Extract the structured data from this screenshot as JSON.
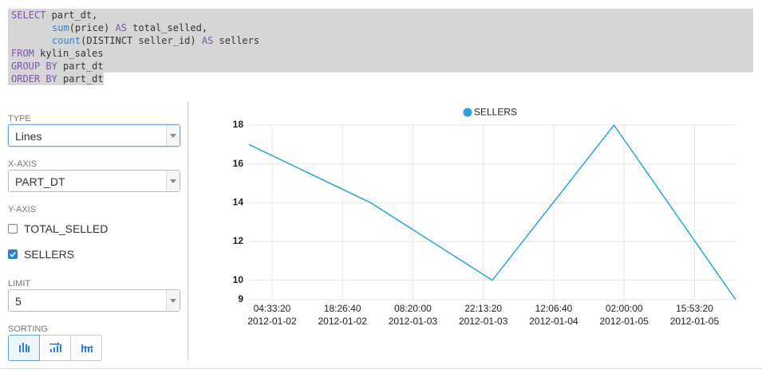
{
  "sql": {
    "lines": [
      [
        {
          "text": "SELECT",
          "style": "keyword"
        },
        {
          "text": " part_dt,",
          "style": "plain"
        }
      ],
      [
        {
          "text": "sum",
          "style": "function"
        },
        {
          "text": "(price) ",
          "style": "plain"
        },
        {
          "text": "AS",
          "style": "keyword"
        },
        {
          "text": " total_selled,",
          "style": "plain"
        }
      ],
      [
        {
          "text": "count",
          "style": "function"
        },
        {
          "text": "(DISTINCT seller_id) ",
          "style": "plain"
        },
        {
          "text": "AS",
          "style": "keyword"
        },
        {
          "text": " sellers",
          "style": "plain"
        }
      ],
      [
        {
          "text": "FROM",
          "style": "keyword"
        },
        {
          "text": " kylin_sales",
          "style": "plain"
        }
      ],
      [
        {
          "text": "GROUP BY",
          "style": "keyword"
        },
        {
          "text": " part_dt",
          "style": "plain"
        }
      ],
      [
        {
          "text": "ORDER BY",
          "style": "keyword"
        },
        {
          "text": " part_dt",
          "style": "plain"
        }
      ]
    ]
  },
  "panel": {
    "type": {
      "label": "TYPE",
      "value": "Lines"
    },
    "x_axis": {
      "label": "X-AXIS",
      "value": "PART_DT"
    },
    "y_axis": {
      "label": "Y-AXIS",
      "options": [
        {
          "name": "TOTAL_SELLED",
          "checked": false
        },
        {
          "name": "SELLERS",
          "checked": true
        }
      ]
    },
    "limit": {
      "label": "LIMIT",
      "value": 5
    },
    "sorting": {
      "label": "SORTING"
    }
  },
  "chart_data": {
    "type": "line",
    "x": [
      "2012-01-02 00:00:00",
      "2012-01-03 00:00:00",
      "2012-01-04 00:00:00",
      "2012-01-05 00:00:00",
      "2012-01-06 00:00:00"
    ],
    "series": [
      {
        "name": "SELLERS",
        "color": "#29a3dc",
        "values": [
          17,
          14,
          10,
          18,
          9
        ]
      }
    ],
    "xlim": [
      "2012-01-02 00:00:00",
      "2012-01-06 00:00:00"
    ],
    "xticks": [
      {
        "value": "2012-01-02 04:33:20",
        "label": [
          "04:33:20",
          "2012-01-02"
        ]
      },
      {
        "value": "2012-01-02 18:26:40",
        "label": [
          "18:26:40",
          "2012-01-02"
        ]
      },
      {
        "value": "2012-01-03 08:20:00",
        "label": [
          "08:20:00",
          "2012-01-03"
        ]
      },
      {
        "value": "2012-01-03 22:13:20",
        "label": [
          "22:13:20",
          "2012-01-03"
        ]
      },
      {
        "value": "2012-01-04 12:06:40",
        "label": [
          "12:06:40",
          "2012-01-04"
        ]
      },
      {
        "value": "2012-01-05 02:00:00",
        "label": [
          "02:00:00",
          "2012-01-05"
        ]
      },
      {
        "value": "2012-01-05 15:53:20",
        "label": [
          "15:53:20",
          "2012-01-05"
        ]
      }
    ],
    "ylim": [
      9,
      18
    ],
    "yticks": [
      9,
      10,
      12,
      14,
      16,
      18
    ],
    "grid": true,
    "legend": "top"
  }
}
